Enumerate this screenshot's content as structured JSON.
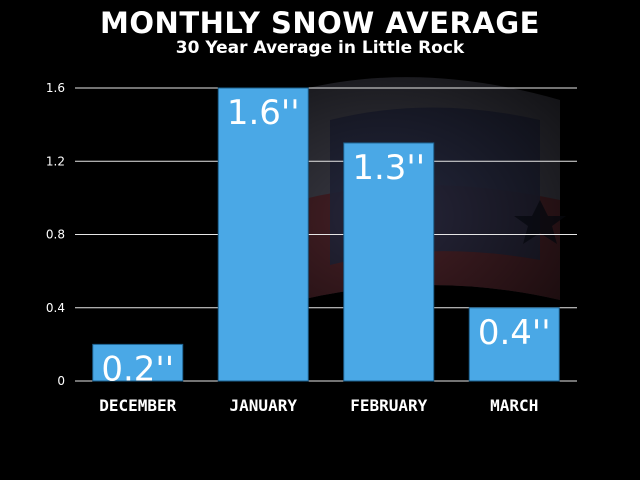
{
  "chart_data": {
    "type": "bar",
    "title": "MONTHLY SNOW AVERAGE",
    "subtitle": "30 Year Average in Little Rock",
    "categories": [
      "DECEMBER",
      "JANUARY",
      "FEBRUARY",
      "MARCH"
    ],
    "values": [
      0.2,
      1.6,
      1.3,
      0.4
    ],
    "data_labels": [
      "0.2''",
      "1.6''",
      "1.3''",
      "0.4''"
    ],
    "ylim": [
      0,
      1.6
    ],
    "yticks": [
      0,
      0.4,
      0.8,
      1.2,
      1.6
    ],
    "ytick_labels": [
      "0",
      "0.4",
      "0.8",
      "1.2",
      "1.6"
    ],
    "grid": true,
    "bar_color": "#4aa8e6",
    "background_color": "#000000"
  }
}
